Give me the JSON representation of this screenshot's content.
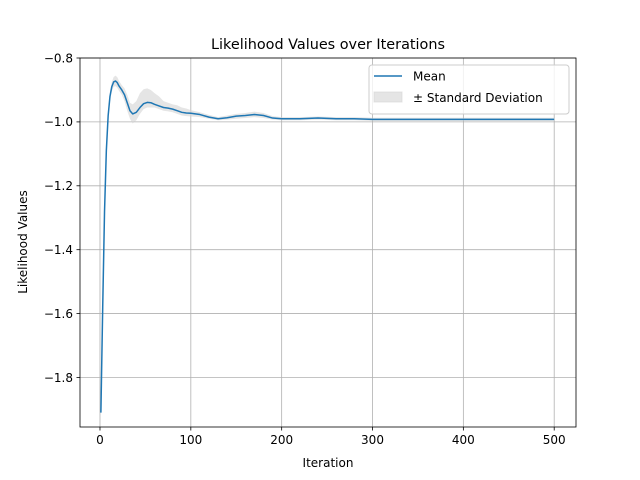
{
  "chart_data": {
    "type": "line",
    "title": "Likelihood Values over Iterations",
    "xlabel": "Iteration",
    "ylabel": "Likelihood Values",
    "xlim": [
      -22,
      524
    ],
    "ylim": [
      -1.955,
      -0.8
    ],
    "grid": true,
    "legend_position": "top-right",
    "xticks": [
      0,
      100,
      200,
      300,
      400,
      500
    ],
    "xtick_labels": [
      "0",
      "100",
      "200",
      "300",
      "400",
      "500"
    ],
    "yticks": [
      -1.8,
      -1.6,
      -1.4,
      -1.2,
      -1.0,
      -0.8
    ],
    "ytick_labels": [
      "−1.8",
      "−1.6",
      "−1.4",
      "−1.2",
      "−1.0",
      "−0.8"
    ],
    "series": [
      {
        "name": "Mean",
        "kind": "line",
        "color": "#1f77b4",
        "x": [
          1,
          3,
          5,
          7,
          9,
          11,
          13,
          15,
          17,
          19,
          21,
          24,
          27,
          30,
          33,
          36,
          40,
          44,
          48,
          52,
          56,
          60,
          65,
          70,
          75,
          80,
          85,
          90,
          95,
          100,
          110,
          120,
          130,
          140,
          150,
          160,
          170,
          180,
          190,
          200,
          220,
          240,
          260,
          280,
          300,
          350,
          400,
          450,
          500
        ],
        "y": [
          -1.91,
          -1.58,
          -1.28,
          -1.09,
          -0.98,
          -0.92,
          -0.89,
          -0.875,
          -0.872,
          -0.877,
          -0.888,
          -0.9,
          -0.915,
          -0.94,
          -0.965,
          -0.975,
          -0.97,
          -0.955,
          -0.943,
          -0.939,
          -0.94,
          -0.945,
          -0.95,
          -0.955,
          -0.957,
          -0.96,
          -0.965,
          -0.97,
          -0.972,
          -0.973,
          -0.977,
          -0.985,
          -0.99,
          -0.987,
          -0.982,
          -0.98,
          -0.977,
          -0.98,
          -0.988,
          -0.99,
          -0.99,
          -0.988,
          -0.99,
          -0.99,
          -0.992,
          -0.992,
          -0.992,
          -0.992,
          -0.992
        ]
      },
      {
        "name": "± Standard Deviation",
        "kind": "band",
        "color": "#d3d3d3",
        "opacity": 0.6,
        "x": [
          1,
          3,
          5,
          7,
          9,
          11,
          13,
          15,
          17,
          19,
          21,
          24,
          27,
          30,
          33,
          36,
          40,
          44,
          48,
          52,
          56,
          60,
          65,
          70,
          75,
          80,
          85,
          90,
          95,
          100,
          110,
          120,
          130,
          140,
          150,
          160,
          170,
          180,
          190,
          200,
          220,
          240,
          260,
          280,
          300,
          350,
          400,
          450,
          500
        ],
        "y_low": [
          -1.915,
          -1.59,
          -1.29,
          -1.1,
          -0.995,
          -0.935,
          -0.905,
          -0.89,
          -0.888,
          -0.893,
          -0.903,
          -0.915,
          -0.935,
          -0.965,
          -0.99,
          -1.005,
          -0.995,
          -0.975,
          -0.96,
          -0.955,
          -0.955,
          -0.955,
          -0.96,
          -0.965,
          -0.967,
          -0.97,
          -0.975,
          -0.98,
          -0.982,
          -0.983,
          -0.985,
          -0.99,
          -0.995,
          -0.993,
          -0.99,
          -0.988,
          -0.985,
          -0.988,
          -0.993,
          -0.995,
          -0.995,
          -0.993,
          -0.995,
          -0.995,
          -0.997,
          -0.997,
          -0.997,
          -0.997,
          -0.997
        ],
        "y_high": [
          -1.905,
          -1.57,
          -1.27,
          -1.08,
          -0.965,
          -0.905,
          -0.875,
          -0.86,
          -0.855,
          -0.86,
          -0.872,
          -0.885,
          -0.895,
          -0.915,
          -0.94,
          -0.945,
          -0.935,
          -0.91,
          -0.898,
          -0.895,
          -0.9,
          -0.91,
          -0.92,
          -0.935,
          -0.94,
          -0.945,
          -0.948,
          -0.955,
          -0.958,
          -0.963,
          -0.97,
          -0.978,
          -0.985,
          -0.98,
          -0.975,
          -0.972,
          -0.968,
          -0.972,
          -0.982,
          -0.985,
          -0.985,
          -0.983,
          -0.985,
          -0.985,
          -0.987,
          -0.987,
          -0.987,
          -0.987,
          -0.987
        ]
      }
    ]
  }
}
